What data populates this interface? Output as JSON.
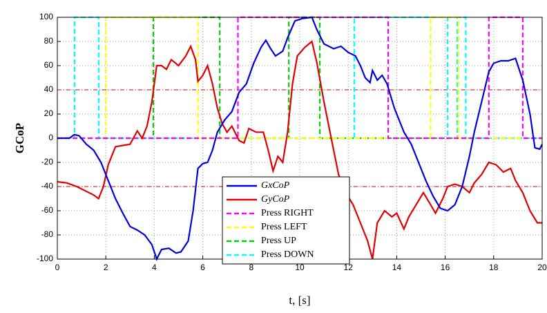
{
  "chart_data": {
    "type": "line",
    "xlabel": "t, [s]",
    "ylabel": "GCoP",
    "xlim": [
      0,
      20
    ],
    "xticks": [
      0,
      2,
      4,
      6,
      8,
      10,
      12,
      14,
      16,
      18,
      20
    ],
    "ylim": [
      -100,
      100
    ],
    "yticks": [
      -100,
      -80,
      -60,
      -40,
      -20,
      0,
      20,
      40,
      60,
      80,
      100
    ],
    "grid": true,
    "legend": "lower center",
    "thresholds": {
      "color": "#e00000",
      "values": [
        40,
        -40
      ]
    },
    "series": [
      {
        "name": "GxCoP",
        "color": "#0000e0",
        "dash": "solid",
        "x": [
          0,
          0.5,
          0.7,
          0.9,
          1.2,
          1.5,
          1.8,
          2.1,
          2.4,
          2.7,
          3.0,
          3.3,
          3.6,
          3.9,
          4.1,
          4.3,
          4.6,
          4.9,
          5.1,
          5.4,
          5.6,
          5.8,
          6.0,
          6.2,
          6.4,
          6.6,
          6.9,
          7.2,
          7.5,
          7.8,
          8.1,
          8.4,
          8.6,
          8.8,
          9.0,
          9.3,
          9.5,
          9.8,
          10.1,
          10.5,
          10.7,
          11.0,
          11.4,
          11.7,
          12.0,
          12.3,
          12.5,
          12.7,
          12.9,
          13.0,
          13.2,
          13.4,
          13.6,
          13.9,
          14.3,
          14.6,
          14.9,
          15.2,
          15.5,
          15.8,
          16.1,
          16.4,
          16.7,
          17.0,
          17.2,
          17.5,
          17.8,
          18.0,
          18.3,
          18.6,
          18.9,
          19.2,
          19.5,
          19.7,
          19.9,
          20
        ],
        "values": [
          0,
          0,
          3,
          2,
          -5,
          -10,
          -20,
          -35,
          -50,
          -62,
          -73,
          -76,
          -80,
          -88,
          -100,
          -92,
          -91,
          -95,
          -94,
          -85,
          -60,
          -25,
          -21,
          -20,
          -10,
          5,
          15,
          22,
          38,
          45,
          62,
          75,
          81,
          74,
          68,
          72,
          83,
          97,
          99,
          100,
          90,
          78,
          74,
          76,
          71,
          68,
          60,
          50,
          46,
          56,
          48,
          52,
          45,
          25,
          5,
          -5,
          -20,
          -35,
          -48,
          -58,
          -60,
          -55,
          -40,
          -15,
          5,
          30,
          55,
          62,
          64,
          64,
          66,
          48,
          20,
          -8,
          -9,
          -5
        ]
      },
      {
        "name": "GyCoP",
        "color": "#e00000",
        "dash": "solid",
        "x": [
          0,
          0.4,
          0.8,
          1.2,
          1.5,
          1.7,
          1.9,
          2.1,
          2.4,
          2.7,
          3.0,
          3.3,
          3.5,
          3.7,
          3.9,
          4.1,
          4.3,
          4.5,
          4.7,
          5.0,
          5.3,
          5.5,
          5.7,
          5.8,
          6.0,
          6.2,
          6.4,
          6.6,
          6.8,
          7.0,
          7.2,
          7.5,
          7.7,
          7.9,
          8.2,
          8.5,
          8.7,
          8.9,
          9.1,
          9.3,
          9.5,
          9.7,
          9.9,
          10.2,
          10.5,
          10.7,
          11.0,
          11.3,
          11.6,
          11.9,
          12.2,
          12.5,
          12.8,
          13.0,
          13.2,
          13.5,
          13.8,
          14.0,
          14.3,
          14.5,
          14.8,
          15.1,
          15.4,
          15.6,
          15.9,
          16.1,
          16.4,
          16.7,
          17.0,
          17.2,
          17.5,
          17.8,
          18.1,
          18.4,
          18.7,
          18.9,
          19.2,
          19.5,
          19.8,
          20
        ],
        "values": [
          -36,
          -37,
          -40,
          -44,
          -47,
          -50,
          -40,
          -22,
          -7,
          -6,
          -5,
          6,
          0,
          10,
          30,
          60,
          60,
          57,
          65,
          60,
          68,
          76,
          65,
          47,
          52,
          60,
          45,
          25,
          12,
          5,
          10,
          -2,
          -4,
          8,
          5,
          5,
          -10,
          -27,
          -15,
          -20,
          5,
          45,
          68,
          75,
          80,
          63,
          30,
          0,
          -30,
          -45,
          -55,
          -70,
          -85,
          -100,
          -70,
          -60,
          -65,
          -62,
          -75,
          -65,
          -55,
          -45,
          -55,
          -62,
          -50,
          -40,
          -38,
          -40,
          -45,
          -37,
          -30,
          -20,
          -22,
          -28,
          -25,
          -35,
          -45,
          -60,
          -70,
          -70
        ]
      },
      {
        "name": "Press RIGHT",
        "color": "#ff00ff",
        "dash": "dashed",
        "x": [
          0,
          7.45,
          7.45,
          13.65,
          13.65,
          17.8,
          17.8,
          19.2,
          19.2,
          20
        ],
        "values": [
          0,
          0,
          100,
          100,
          0,
          0,
          100,
          100,
          0,
          0
        ]
      },
      {
        "name": "Press LEFT",
        "color": "#ffff00",
        "dash": "dashed",
        "x": [
          0,
          2.0,
          2.0,
          5.8,
          5.8,
          15.4,
          15.4,
          16.55,
          16.55,
          20
        ],
        "values": [
          0,
          0,
          100,
          100,
          0,
          0,
          100,
          100,
          0,
          0
        ]
      },
      {
        "name": "Press UP",
        "color": "#00d000",
        "dash": "dashed",
        "x": [
          0,
          3.96,
          3.96,
          6.7,
          6.7,
          9.55,
          9.55,
          10.83,
          10.83,
          20
        ],
        "values": [
          0,
          0,
          100,
          100,
          0,
          0,
          100,
          100,
          0,
          0
        ]
      },
      {
        "name": "Press DOWN",
        "color": "#00ffff",
        "dash": "dashed",
        "x": [
          0,
          0.71,
          0.71,
          1.71,
          1.71,
          12.25,
          12.25,
          16.1,
          16.1,
          16.5,
          16.5,
          16.85,
          16.85,
          20
        ],
        "values": [
          0,
          0,
          100,
          100,
          0,
          0,
          100,
          100,
          0,
          0,
          100,
          100,
          0,
          0
        ]
      }
    ]
  }
}
